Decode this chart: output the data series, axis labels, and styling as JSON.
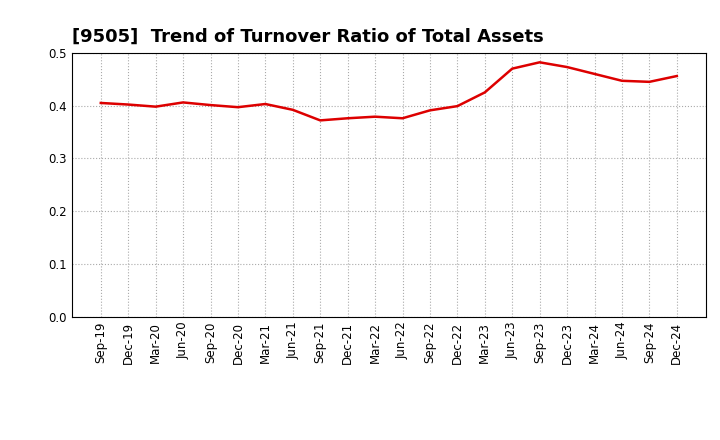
{
  "title": "[9505]  Trend of Turnover Ratio of Total Assets",
  "labels": [
    "Sep-19",
    "Dec-19",
    "Mar-20",
    "Jun-20",
    "Sep-20",
    "Dec-20",
    "Mar-21",
    "Jun-21",
    "Sep-21",
    "Dec-21",
    "Mar-22",
    "Jun-22",
    "Sep-22",
    "Dec-22",
    "Mar-23",
    "Jun-23",
    "Sep-23",
    "Dec-23",
    "Mar-24",
    "Jun-24",
    "Sep-24",
    "Dec-24"
  ],
  "values": [
    0.405,
    0.402,
    0.398,
    0.406,
    0.401,
    0.397,
    0.403,
    0.392,
    0.372,
    0.376,
    0.379,
    0.376,
    0.391,
    0.399,
    0.425,
    0.47,
    0.482,
    0.473,
    0.46,
    0.447,
    0.445,
    0.456
  ],
  "line_color": "#dd0000",
  "background_color": "#ffffff",
  "grid_color": "#aaaaaa",
  "ylim": [
    0.0,
    0.5
  ],
  "yticks": [
    0.0,
    0.1,
    0.2,
    0.3,
    0.4,
    0.5
  ],
  "title_fontsize": 13,
  "tick_fontsize": 8.5,
  "line_width": 1.8
}
